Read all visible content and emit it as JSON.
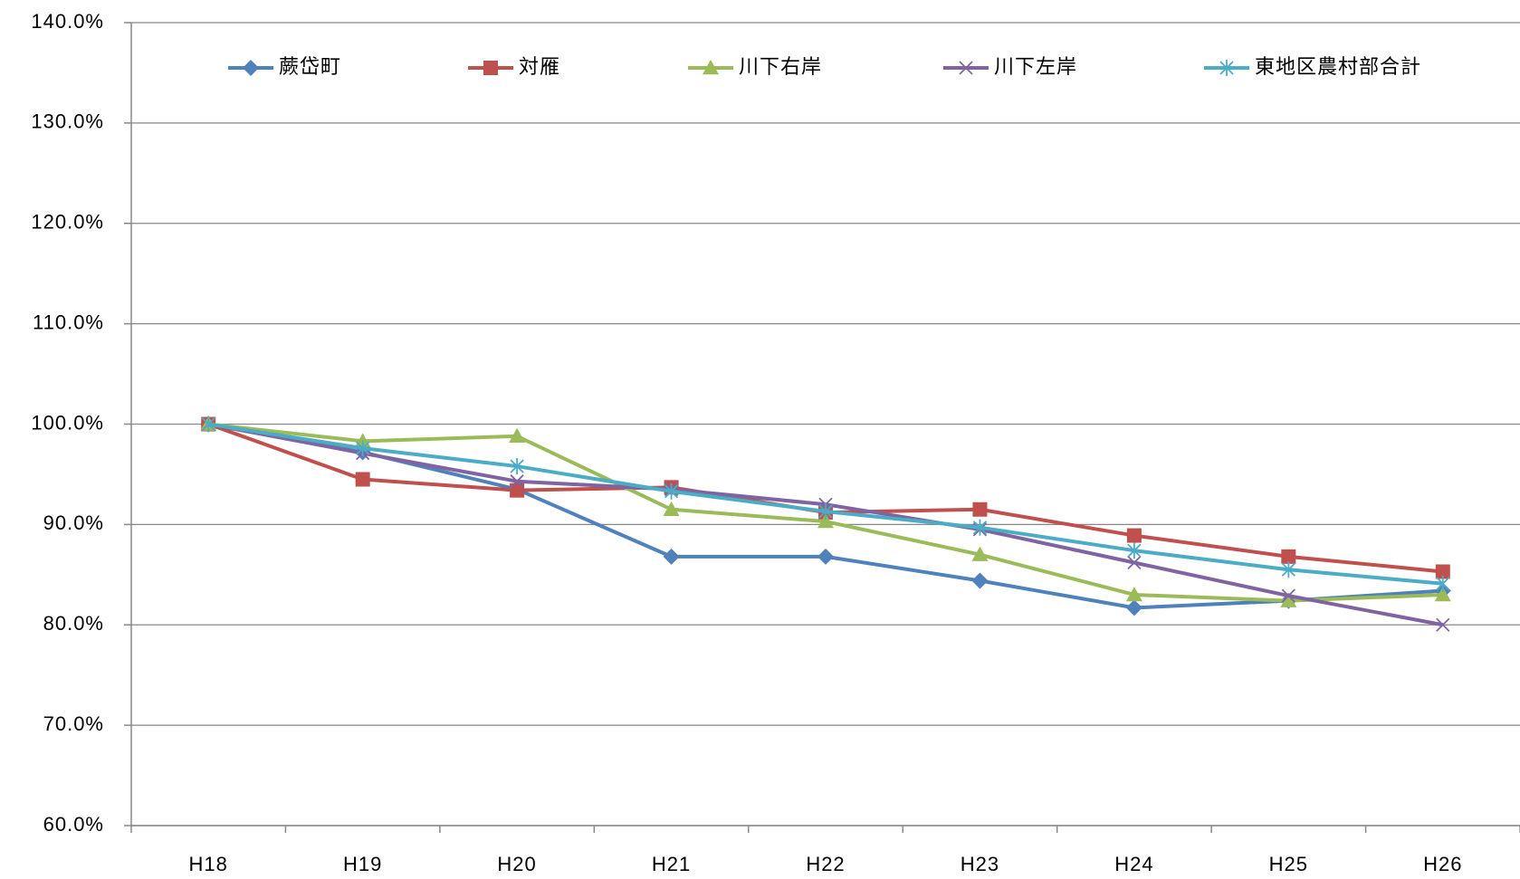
{
  "chart_data": {
    "type": "line",
    "categories": [
      "H18",
      "H19",
      "H20",
      "H21",
      "H22",
      "H23",
      "H24",
      "H25",
      "H26"
    ],
    "series": [
      {
        "name": "蕨岱町",
        "color": "#4f81bd",
        "marker": "diamond",
        "values": [
          100,
          97.2,
          93.5,
          86.8,
          86.8,
          84.4,
          81.7,
          82.4,
          83.4
        ]
      },
      {
        "name": "対雁",
        "color": "#c0504d",
        "marker": "square",
        "values": [
          100,
          94.5,
          93.4,
          93.7,
          91.2,
          91.5,
          88.9,
          86.8,
          85.3
        ]
      },
      {
        "name": "川下右岸",
        "color": "#9bbb59",
        "marker": "triangle",
        "values": [
          100,
          98.3,
          98.8,
          91.5,
          90.3,
          87.0,
          83.0,
          82.4,
          83.0
        ]
      },
      {
        "name": "川下左岸",
        "color": "#8064a2",
        "marker": "x",
        "values": [
          100,
          97.1,
          94.3,
          93.5,
          92.0,
          89.5,
          86.2,
          82.9,
          80.0
        ]
      },
      {
        "name": "東地区農村部合計",
        "color": "#4bacc6",
        "marker": "star",
        "values": [
          100,
          97.6,
          95.8,
          93.3,
          91.3,
          89.7,
          87.4,
          85.5,
          84.1
        ]
      }
    ],
    "ylim": [
      60,
      140
    ],
    "yticks": [
      {
        "value": 60,
        "label": "60.0%"
      },
      {
        "value": 70,
        "label": "70.0%"
      },
      {
        "value": 80,
        "label": "80.0%"
      },
      {
        "value": 90,
        "label": "90.0%"
      },
      {
        "value": 100,
        "label": "100.0%"
      },
      {
        "value": 110,
        "label": "110.0%"
      },
      {
        "value": 120,
        "label": "120.0%"
      },
      {
        "value": 130,
        "label": "130.0%"
      },
      {
        "value": 140,
        "label": "140.0%"
      }
    ],
    "grid": true,
    "legend": "top"
  }
}
